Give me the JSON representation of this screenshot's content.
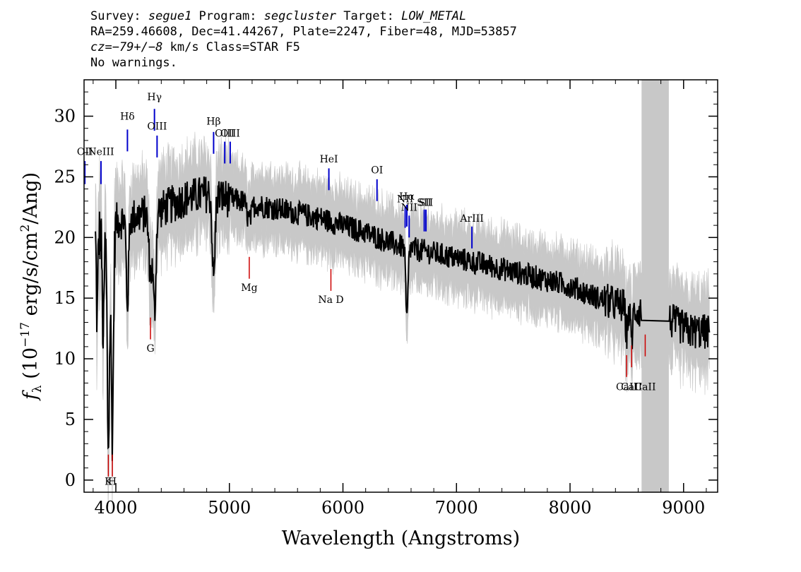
{
  "header": {
    "survey_label": "Survey: ",
    "survey": "segue1",
    "program_label": " Program: ",
    "program": "segcluster",
    "target_label": " Target: ",
    "target": "LOW_METAL",
    "line2": "RA=259.46608, Dec=41.44267, Plate=2247, Fiber=48, MJD=53857",
    "cz_label": "cz=",
    "cz_value": "−79+/−8",
    "cz_rest": " km/s Class=STAR F5",
    "line4": "No warnings."
  },
  "chart_data": {
    "type": "line",
    "xlabel": "Wavelength (Angstroms)",
    "ylabel_prefix": "f",
    "ylabel_sub": "λ",
    "ylabel_main": " (10",
    "ylabel_exp": "−17",
    "ylabel_rest": " erg/s/cm",
    "ylabel_exp2": "2",
    "ylabel_end": "/Ang)",
    "xlim": [
      3720,
      9300
    ],
    "ylim": [
      -1,
      33
    ],
    "xticks": [
      4000,
      5000,
      6000,
      7000,
      8000,
      9000
    ],
    "yticks": [
      0,
      5,
      10,
      15,
      20,
      25,
      30
    ],
    "masked_region": [
      8630,
      8870
    ],
    "colors": {
      "flux": "#000000",
      "error_band": "#c8c8c8",
      "emission": "#0000cc",
      "absorption": "#cc0000",
      "mask": "#c8c8c8"
    },
    "continuum": [
      [
        3820,
        20
      ],
      [
        3900,
        20.5
      ],
      [
        4000,
        21.3
      ],
      [
        4200,
        21.8
      ],
      [
        4400,
        22.3
      ],
      [
        4600,
        23.2
      ],
      [
        4800,
        23.6
      ],
      [
        5000,
        23.2
      ],
      [
        5200,
        22.8
      ],
      [
        5500,
        22.2
      ],
      [
        5800,
        21.6
      ],
      [
        6000,
        21
      ],
      [
        6200,
        20.4
      ],
      [
        6500,
        19.3
      ],
      [
        7000,
        18.3
      ],
      [
        7500,
        17.2
      ],
      [
        8000,
        16
      ],
      [
        8300,
        14.8
      ],
      [
        8630,
        13.9
      ],
      [
        8870,
        13.2
      ],
      [
        9050,
        12.3
      ],
      [
        9230,
        12.2
      ]
    ],
    "features": [
      {
        "c": 3934,
        "d": 18,
        "w": 10
      },
      {
        "c": 3969,
        "d": 17,
        "w": 10
      },
      {
        "c": 3889,
        "d": 9,
        "w": 8
      },
      {
        "c": 3835,
        "d": 7,
        "w": 6
      },
      {
        "c": 4102,
        "d": 7,
        "w": 10
      },
      {
        "c": 4305,
        "d": 5,
        "w": 15
      },
      {
        "c": 4341,
        "d": 8,
        "w": 12
      },
      {
        "c": 4861,
        "d": 7,
        "w": 12
      },
      {
        "c": 5175,
        "d": 1.5,
        "w": 20
      },
      {
        "c": 6563,
        "d": 6,
        "w": 10
      },
      {
        "c": 8498,
        "d": 2,
        "w": 10
      },
      {
        "c": 8542,
        "d": 2.5,
        "w": 10
      },
      {
        "c": 8662,
        "d": 2,
        "w": 10
      }
    ],
    "emission_lines": [
      {
        "label": "OII",
        "x": 3727,
        "label_y": 26.8,
        "y_top": 26.3,
        "y_bottom": 24.4
      },
      {
        "label": "NeIII",
        "x": 3869,
        "label_y": 26.8,
        "y_top": 26.3,
        "y_bottom": 24.4
      },
      {
        "label": "Hδ",
        "x": 4102,
        "label_y": 29.7,
        "y_top": 28.9,
        "y_bottom": 27.1
      },
      {
        "label": "Hγ",
        "x": 4340,
        "label_y": 31.3,
        "y_top": 30.6,
        "y_bottom": 28.8
      },
      {
        "label": "OIII",
        "x": 4363,
        "label_y": 28.9,
        "y_top": 28.4,
        "y_bottom": 26.6
      },
      {
        "label": "Hβ",
        "x": 4861,
        "label_y": 29.3,
        "y_top": 28.7,
        "y_bottom": 26.9
      },
      {
        "label": "OIII",
        "x": 4959,
        "label_y": 28.3,
        "y_top": 27.9,
        "y_bottom": 26.1
      },
      {
        "label": "OIII",
        "x": 5007,
        "label_y": 28.3,
        "y_top": 27.9,
        "y_bottom": 26.1
      },
      {
        "label": "HeI",
        "x": 5876,
        "label_y": 26.2,
        "y_top": 25.7,
        "y_bottom": 23.9
      },
      {
        "label": "OI",
        "x": 6300,
        "label_y": 25.3,
        "y_top": 24.8,
        "y_bottom": 23
      },
      {
        "label": "NII",
        "x": 6548,
        "label_y": 22.9,
        "y_top": 22.6,
        "y_bottom": 20.8
      },
      {
        "label": "Hα",
        "x": 6563,
        "label_y": 23.1,
        "y_top": 22.7,
        "y_bottom": 20.9
      },
      {
        "label": "NII",
        "x": 6583,
        "label_y": 22.2,
        "y_top": 21.8,
        "y_bottom": 20
      },
      {
        "label": "SII",
        "x": 6716,
        "label_y": 22.6,
        "y_top": 22.3,
        "y_bottom": 20.5
      },
      {
        "label": "SII",
        "x": 6731,
        "label_y": 22.6,
        "y_top": 22.3,
        "y_bottom": 20.5
      },
      {
        "label": "ArIII",
        "x": 7136,
        "label_y": 21.3,
        "y_top": 20.9,
        "y_bottom": 19.1
      }
    ],
    "absorption_lines": [
      {
        "label": "K",
        "x": 3934,
        "label_y": -0.4,
        "y_top": 2.1,
        "y_bottom": 0.3
      },
      {
        "label": "H",
        "x": 3969,
        "label_y": -0.4,
        "y_top": 2.1,
        "y_bottom": 0.3
      },
      {
        "label": "G",
        "x": 4305,
        "label_y": 10.6,
        "y_top": 13.4,
        "y_bottom": 11.6
      },
      {
        "label": "Mg",
        "x": 5175,
        "label_y": 15.6,
        "y_top": 18.4,
        "y_bottom": 16.6
      },
      {
        "label": "Na D",
        "x": 5894,
        "label_y": 14.6,
        "y_top": 17.4,
        "y_bottom": 15.6
      },
      {
        "label": "CaII",
        "x": 8498,
        "label_y": 7.4,
        "y_top": 10.3,
        "y_bottom": 8.5
      },
      {
        "label": "CaII",
        "x": 8542,
        "label_y": 7.4,
        "y_top": 11.1,
        "y_bottom": 9.3
      },
      {
        "label": "CaII",
        "x": 8662,
        "label_y": 7.4,
        "y_top": 12,
        "y_bottom": 10.2
      }
    ]
  }
}
